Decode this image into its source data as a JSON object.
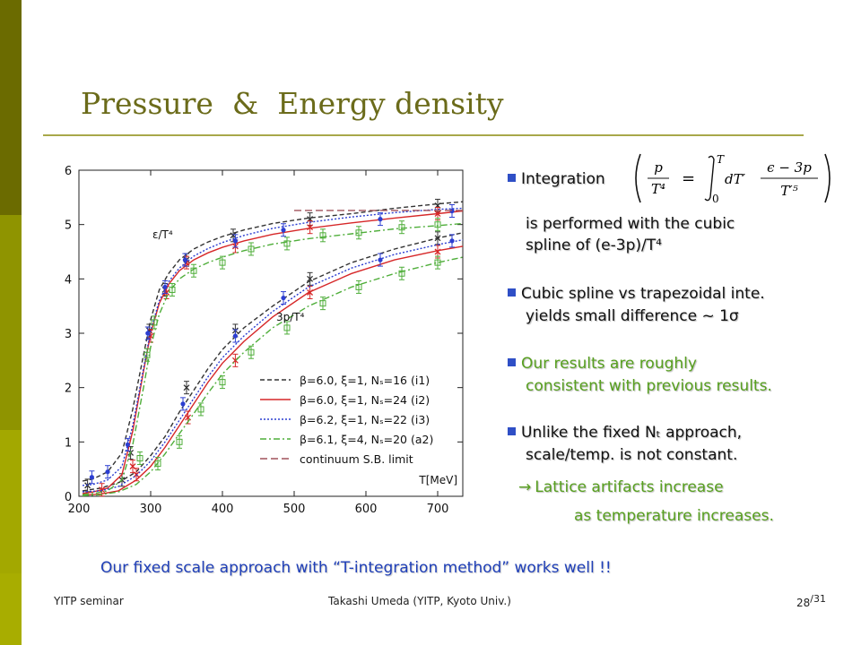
{
  "slide": {
    "title": "Pressure  &  Energy density",
    "sidebar_colors": [
      "#6b6b00",
      "#8f9400",
      "#a3a800",
      "#a8ad00"
    ]
  },
  "bullets": [
    {
      "lines": [
        "Integration"
      ],
      "color": "#111111"
    },
    {
      "lines": [
        "is performed with the cubic",
        "spline of (e-3p)/T⁴"
      ],
      "color": "#111111",
      "continuation": true
    },
    {
      "lines": [
        "Cubic spline vs trapezoidal inte.",
        "yields small difference ~ 1σ"
      ],
      "color": "#111111"
    },
    {
      "lines": [
        "Our results are roughly",
        "consistent with previous results."
      ],
      "color": "#58a020"
    },
    {
      "lines": [
        "Unlike the fixed Nₜ approach,",
        "scale/temp. is not constant."
      ],
      "color": "#111111"
    },
    {
      "lines": [
        "Lattice artifacts increase",
        "as temperature increases."
      ],
      "color": "#58a020",
      "arrow": true
    }
  ],
  "formula": {
    "lhs_num": "p",
    "lhs_den": "T⁴",
    "equals": "=",
    "upper": "T",
    "lower": "0",
    "integrand": "dT′",
    "rhs_num": "ϵ − 3p",
    "rhs_den": "T′⁵"
  },
  "conclusion": "Our fixed scale approach with “T-integration method” works well !!",
  "footer": {
    "left": "YITP seminar",
    "center": "Takashi Umeda (YITP, Kyoto Univ.)",
    "page": "28",
    "total": "/31"
  },
  "chart_data": {
    "type": "line",
    "xlabel": "T[MeV]",
    "xlim": [
      200,
      735
    ],
    "ylim": [
      0,
      6
    ],
    "xticks": [
      200,
      300,
      400,
      500,
      600,
      700
    ],
    "yticks": [
      0,
      1,
      2,
      3,
      4,
      5,
      6
    ],
    "curve_labels": [
      {
        "text": "ε/T⁴",
        "x": 218,
        "y": 4.7
      },
      {
        "text": "3p/T⁴",
        "x": 385,
        "y": 3.3
      }
    ],
    "series": [
      {
        "name": "β=6.0, ξ=1, Nₛ=16 (i1)",
        "color": "#333333",
        "dash": "5,3",
        "marker": "x",
        "energy": {
          "x": [
            205,
            220,
            240,
            260,
            275,
            290,
            300,
            312,
            325,
            340,
            360,
            380,
            400,
            430,
            470,
            520,
            580,
            640,
            700,
            735
          ],
          "y": [
            0.28,
            0.32,
            0.45,
            0.8,
            1.6,
            2.6,
            3.25,
            3.8,
            4.1,
            4.35,
            4.55,
            4.68,
            4.78,
            4.9,
            5.02,
            5.12,
            5.2,
            5.3,
            5.38,
            5.42
          ]
        },
        "pressure": {
          "x": [
            205,
            230,
            255,
            280,
            300,
            320,
            340,
            360,
            380,
            400,
            430,
            470,
            520,
            580,
            640,
            700,
            735
          ],
          "y": [
            0.1,
            0.15,
            0.25,
            0.45,
            0.75,
            1.1,
            1.55,
            1.95,
            2.35,
            2.7,
            3.1,
            3.5,
            3.95,
            4.3,
            4.55,
            4.75,
            4.85
          ]
        },
        "points": [
          [
            212,
            0.2
          ],
          [
            272,
            0.8
          ],
          [
            298,
            3.05
          ],
          [
            320,
            3.8
          ],
          [
            350,
            4.35
          ],
          [
            415,
            4.8
          ],
          [
            522,
            5.1
          ],
          [
            700,
            5.35
          ],
          [
            260,
            0.3
          ],
          [
            350,
            2.0
          ],
          [
            418,
            3.05
          ],
          [
            522,
            4.0
          ],
          [
            700,
            4.75
          ]
        ]
      },
      {
        "name": "β=6.0, ξ=1, Nₛ=24 (i2)",
        "color": "#d62728",
        "dash": "",
        "marker": "x",
        "energy": {
          "x": [
            205,
            220,
            240,
            260,
            275,
            290,
            300,
            312,
            325,
            340,
            360,
            380,
            400,
            430,
            470,
            520,
            580,
            640,
            700,
            735
          ],
          "y": [
            0.05,
            0.08,
            0.15,
            0.4,
            1.2,
            2.3,
            3.0,
            3.55,
            3.9,
            4.15,
            4.35,
            4.48,
            4.58,
            4.7,
            4.82,
            4.93,
            5.03,
            5.12,
            5.2,
            5.25
          ]
        },
        "pressure": {
          "x": [
            205,
            230,
            255,
            280,
            300,
            320,
            340,
            360,
            380,
            400,
            430,
            470,
            520,
            580,
            640,
            700,
            735
          ],
          "y": [
            0.02,
            0.04,
            0.1,
            0.3,
            0.55,
            0.9,
            1.3,
            1.7,
            2.1,
            2.45,
            2.85,
            3.3,
            3.75,
            4.1,
            4.35,
            4.52,
            4.6
          ]
        },
        "points": [
          [
            232,
            0.12
          ],
          [
            275,
            0.55
          ],
          [
            300,
            2.95
          ],
          [
            322,
            3.75
          ],
          [
            350,
            4.3
          ],
          [
            418,
            4.6
          ],
          [
            522,
            4.95
          ],
          [
            700,
            5.2
          ],
          [
            280,
            0.4
          ],
          [
            352,
            1.45
          ],
          [
            418,
            2.5
          ],
          [
            522,
            3.75
          ],
          [
            700,
            4.5
          ]
        ]
      },
      {
        "name": "β=6.2, ξ=1, Nₛ=22 (i3)",
        "color": "#2c3ed1",
        "dash": "2,2",
        "marker": "dot",
        "energy": {
          "x": [
            205,
            220,
            240,
            260,
            275,
            290,
            300,
            312,
            325,
            340,
            360,
            380,
            400,
            430,
            470,
            520,
            580,
            640,
            700,
            735
          ],
          "y": [
            0.2,
            0.22,
            0.3,
            0.55,
            1.3,
            2.35,
            3.05,
            3.6,
            3.95,
            4.2,
            4.42,
            4.56,
            4.67,
            4.8,
            4.93,
            5.04,
            5.14,
            5.22,
            5.28,
            5.3
          ]
        },
        "pressure": {
          "x": [
            205,
            230,
            255,
            280,
            300,
            320,
            340,
            360,
            380,
            400,
            430,
            470,
            520,
            580,
            640,
            700,
            735
          ],
          "y": [
            0.08,
            0.1,
            0.18,
            0.38,
            0.65,
            1.0,
            1.4,
            1.8,
            2.2,
            2.55,
            2.95,
            3.4,
            3.85,
            4.2,
            4.45,
            4.63,
            4.72
          ]
        },
        "points": [
          [
            218,
            0.35
          ],
          [
            240,
            0.45
          ],
          [
            268,
            0.95
          ],
          [
            296,
            3.0
          ],
          [
            320,
            3.85
          ],
          [
            348,
            4.35
          ],
          [
            418,
            4.7
          ],
          [
            485,
            4.9
          ],
          [
            620,
            5.1
          ],
          [
            720,
            5.25
          ],
          [
            345,
            1.7
          ],
          [
            418,
            2.95
          ],
          [
            485,
            3.65
          ],
          [
            620,
            4.35
          ],
          [
            720,
            4.7
          ]
        ]
      },
      {
        "name": "β=6.1, ξ=4, Nₛ=20 (a2)",
        "color": "#4fae3a",
        "dash": "7,3,2,3",
        "marker": "box",
        "energy": {
          "x": [
            205,
            220,
            240,
            260,
            275,
            290,
            300,
            312,
            325,
            340,
            360,
            380,
            400,
            430,
            470,
            520,
            580,
            640,
            700,
            735
          ],
          "y": [
            0.03,
            0.05,
            0.1,
            0.3,
            0.95,
            2.0,
            2.75,
            3.35,
            3.75,
            4.0,
            4.18,
            4.3,
            4.4,
            4.52,
            4.64,
            4.74,
            4.83,
            4.92,
            4.98,
            5.02
          ]
        },
        "pressure": {
          "x": [
            205,
            230,
            255,
            280,
            300,
            320,
            340,
            360,
            380,
            400,
            430,
            470,
            520,
            580,
            640,
            700,
            735
          ],
          "y": [
            0.01,
            0.03,
            0.08,
            0.22,
            0.45,
            0.78,
            1.15,
            1.52,
            1.9,
            2.25,
            2.65,
            3.1,
            3.5,
            3.85,
            4.1,
            4.3,
            4.4
          ]
        },
        "points": [
          [
            285,
            0.7
          ],
          [
            295,
            2.6
          ],
          [
            305,
            3.2
          ],
          [
            330,
            3.8
          ],
          [
            360,
            4.15
          ],
          [
            400,
            4.3
          ],
          [
            440,
            4.55
          ],
          [
            490,
            4.65
          ],
          [
            540,
            4.8
          ],
          [
            590,
            4.85
          ],
          [
            650,
            4.95
          ],
          [
            700,
            5.0
          ],
          [
            310,
            0.6
          ],
          [
            340,
            1.0
          ],
          [
            370,
            1.6
          ],
          [
            400,
            2.1
          ],
          [
            440,
            2.65
          ],
          [
            490,
            3.1
          ],
          [
            540,
            3.55
          ],
          [
            590,
            3.85
          ],
          [
            650,
            4.1
          ],
          [
            700,
            4.3
          ]
        ]
      },
      {
        "name": "continuum S.B. limit",
        "color": "#a0525a",
        "dash": "8,4",
        "marker": "none",
        "energy": {
          "x": [
            500,
            735
          ],
          "y": [
            5.26,
            5.26
          ]
        },
        "pressure": {
          "x": [],
          "y": []
        },
        "points": []
      }
    ]
  }
}
